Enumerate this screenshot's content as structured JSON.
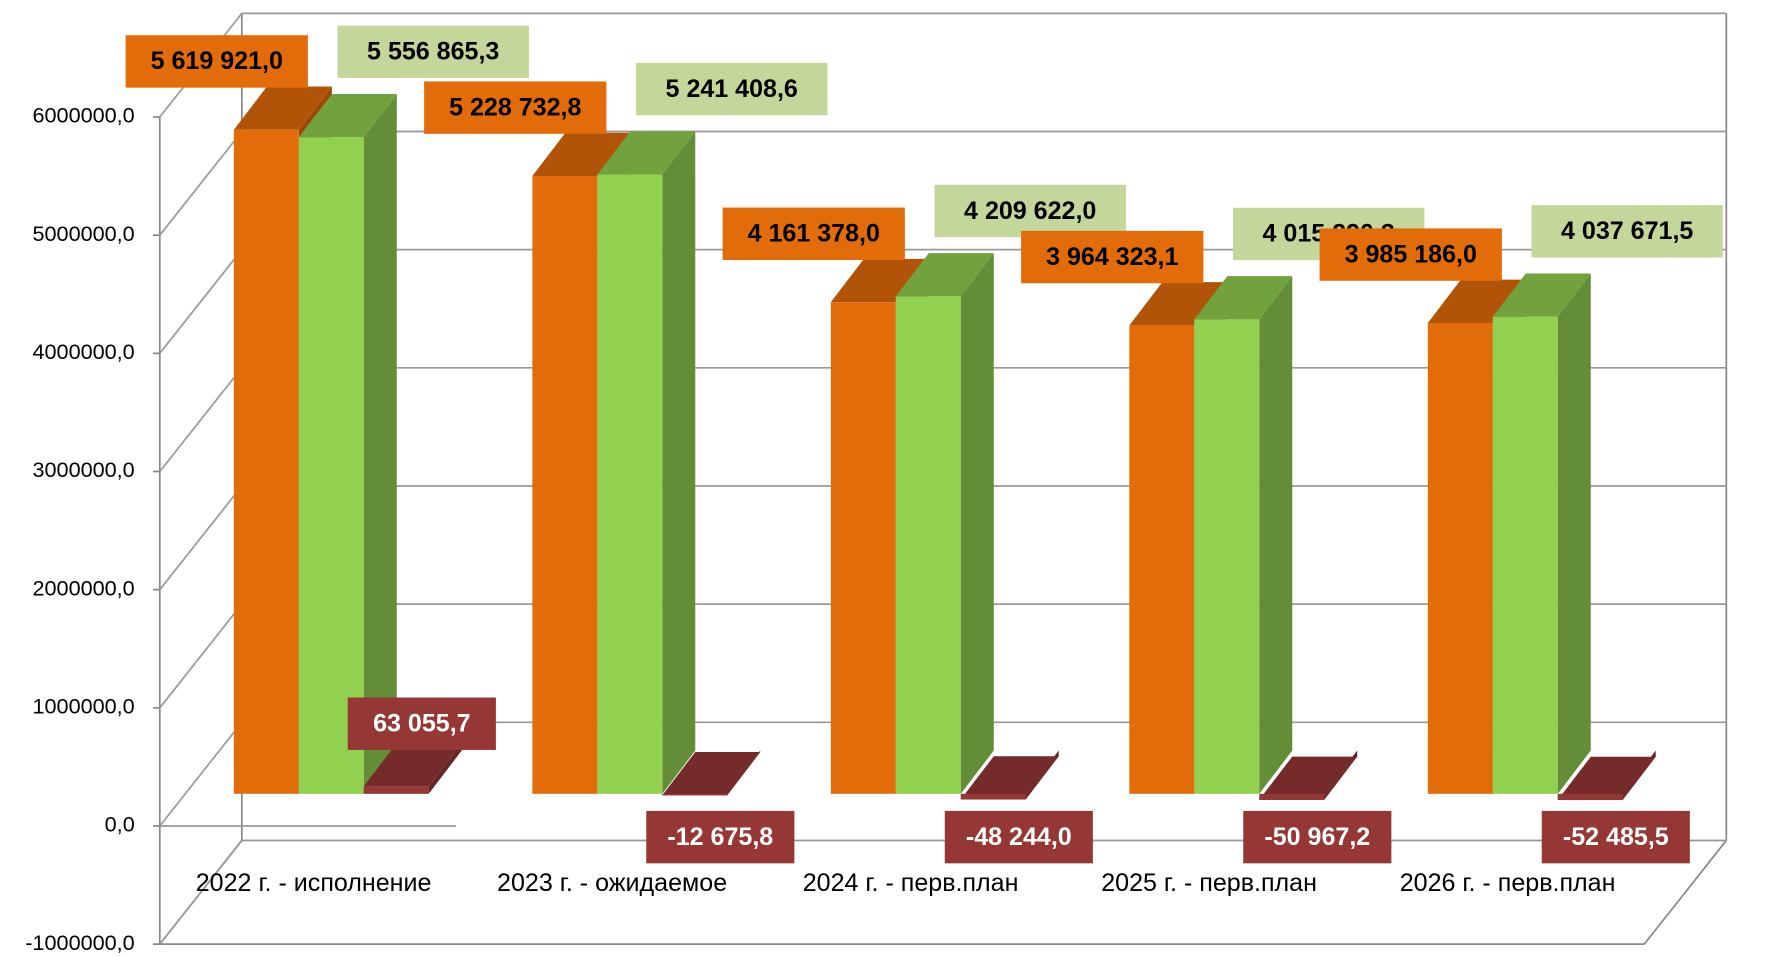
{
  "chart_data": {
    "type": "bar3d",
    "categories": [
      "2022 г. - исполнение",
      "2023 г. - ожидаемое",
      "2024 г. - перв.план",
      "2025 г. - перв.план",
      "2026 г. - перв.план"
    ],
    "series": [
      {
        "color": "#e36c0a",
        "values": [
          5619921.0,
          5228732.8,
          4161378.0,
          3964323.1,
          3985186.0
        ],
        "value_labels": [
          "5 619 921,0",
          "5 228 732,8",
          "4 161 378,0",
          "3 964 323,1",
          "3 985 186,0"
        ]
      },
      {
        "color": "#92d050",
        "values": [
          5556865.3,
          5241408.6,
          4209622.0,
          4015290.3,
          4037671.5
        ],
        "value_labels": [
          "5 556 865,3",
          "5 241 408,6",
          "4 209 622,0",
          "4 015 290,3",
          "4 037 671,5"
        ]
      },
      {
        "color": "#953735",
        "values": [
          63055.7,
          -12675.8,
          -48244.0,
          -50967.2,
          -52485.5
        ],
        "value_labels": [
          "63 055,7",
          "-12 675,8",
          "-48 244,0",
          "-50 967,2",
          "-52 485,5"
        ]
      }
    ],
    "ylim": [
      -1000000,
      6000000
    ],
    "yticks": [
      {
        "value": -1000000,
        "label": "-1000000,0"
      },
      {
        "value": 0,
        "label": "0,0"
      },
      {
        "value": 1000000,
        "label": "1000000,0"
      },
      {
        "value": 2000000,
        "label": "2000000,0"
      },
      {
        "value": 3000000,
        "label": "3000000,0"
      },
      {
        "value": 4000000,
        "label": "4000000,0"
      },
      {
        "value": 5000000,
        "label": "5000000,0"
      },
      {
        "value": 6000000,
        "label": "6000000,0"
      }
    ],
    "grid": true
  }
}
